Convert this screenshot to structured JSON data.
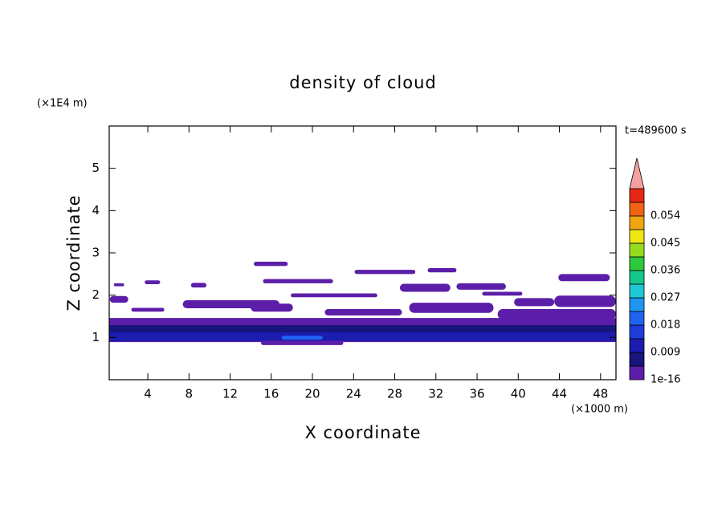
{
  "chart_data": {
    "type": "contour",
    "title": "density of cloud",
    "xlabel": "X coordinate",
    "ylabel": "Z coordinate",
    "x_unit": "(×1000 m)",
    "y_unit": "(×1E4 m)",
    "time_label": "t=489600 s",
    "xlim": [
      0.25,
      49.5
    ],
    "ylim": [
      0,
      6
    ],
    "xticks": [
      4,
      8,
      12,
      16,
      20,
      24,
      28,
      32,
      36,
      40,
      44,
      48
    ],
    "yticks": [
      1,
      2,
      3,
      4,
      5
    ],
    "levels": [
      1e-16,
      0.0045,
      0.009,
      0.0135,
      0.018,
      0.0225,
      0.027,
      0.0315,
      0.036,
      0.0405,
      0.045,
      0.0495,
      0.054,
      0.0585,
      0.063
    ],
    "colors": [
      "#5c1ea8",
      "#16167c",
      "#1c1cae",
      "#1e3cd8",
      "#1e64f0",
      "#1e96f0",
      "#1ec8d2",
      "#14c88c",
      "#2ec83c",
      "#96dc1e",
      "#f0e614",
      "#f0a514",
      "#f06414",
      "#e62814"
    ],
    "extend_color": "#f4a0a0",
    "colorbar_ticks": [
      1e-16,
      0.009,
      0.018,
      0.027,
      0.036,
      0.045,
      0.054
    ],
    "regions": [
      {
        "x": [
          0.25,
          49.5
        ],
        "z": [
          0.89,
          1.46
        ],
        "value": 1e-16
      },
      {
        "x": [
          0.25,
          49.5
        ],
        "z": [
          1.0,
          1.29
        ],
        "value": 0.0045
      },
      {
        "x": [
          0.25,
          49.5
        ],
        "z": [
          0.91,
          1.12
        ],
        "value": 0.009
      },
      {
        "x": [
          15,
          23
        ],
        "z": [
          0.82,
          0.92
        ],
        "value": 1e-16
      },
      {
        "x": [
          17,
          21
        ],
        "z": [
          0.95,
          1.04
        ],
        "value": 0.018
      },
      {
        "x": [
          14.3,
          17.6
        ],
        "z": [
          2.69,
          2.79
        ],
        "value": 1e-16
      },
      {
        "x": [
          0.7,
          1.7
        ],
        "z": [
          2.21,
          2.28
        ],
        "value": 1e-16
      },
      {
        "x": [
          3.7,
          5.2
        ],
        "z": [
          2.26,
          2.35
        ],
        "value": 1e-16
      },
      {
        "x": [
          8.2,
          9.7
        ],
        "z": [
          2.18,
          2.29
        ],
        "value": 1e-16
      },
      {
        "x": [
          15.2,
          22
        ],
        "z": [
          2.28,
          2.38
        ],
        "value": 1e-16
      },
      {
        "x": [
          24.1,
          30
        ],
        "z": [
          2.5,
          2.6
        ],
        "value": 1e-16
      },
      {
        "x": [
          31.2,
          34
        ],
        "z": [
          2.54,
          2.64
        ],
        "value": 1e-16
      },
      {
        "x": [
          28.5,
          33.4
        ],
        "z": [
          2.08,
          2.27
        ],
        "value": 1e-16
      },
      {
        "x": [
          34,
          38.8
        ],
        "z": [
          2.13,
          2.28
        ],
        "value": 1e-16
      },
      {
        "x": [
          17.9,
          26.3
        ],
        "z": [
          1.95,
          2.04
        ],
        "value": 1e-16
      },
      {
        "x": [
          36.5,
          40.4
        ],
        "z": [
          1.99,
          2.08
        ],
        "value": 1e-16
      },
      {
        "x": [
          43.9,
          48.9
        ],
        "z": [
          2.33,
          2.5
        ],
        "value": 1e-16
      },
      {
        "x": [
          0.3,
          2.1
        ],
        "z": [
          1.82,
          1.98
        ],
        "value": 1e-16
      },
      {
        "x": [
          7.4,
          16.8
        ],
        "z": [
          1.69,
          1.88
        ],
        "value": 1e-16
      },
      {
        "x": [
          2.4,
          5.6
        ],
        "z": [
          1.61,
          1.7
        ],
        "value": 1e-16
      },
      {
        "x": [
          14,
          18.1
        ],
        "z": [
          1.61,
          1.8
        ],
        "value": 1e-16
      },
      {
        "x": [
          21.2,
          28.7
        ],
        "z": [
          1.52,
          1.67
        ],
        "value": 1e-16
      },
      {
        "x": [
          29.4,
          37.6
        ],
        "z": [
          1.58,
          1.82
        ],
        "value": 1e-16
      },
      {
        "x": [
          39.6,
          43.5
        ],
        "z": [
          1.74,
          1.93
        ],
        "value": 1e-16
      },
      {
        "x": [
          43.5,
          49.5
        ],
        "z": [
          1.72,
          1.99
        ],
        "value": 1e-16
      },
      {
        "x": [
          38,
          49.5
        ],
        "z": [
          1.43,
          1.67
        ],
        "value": 1e-16
      }
    ]
  }
}
